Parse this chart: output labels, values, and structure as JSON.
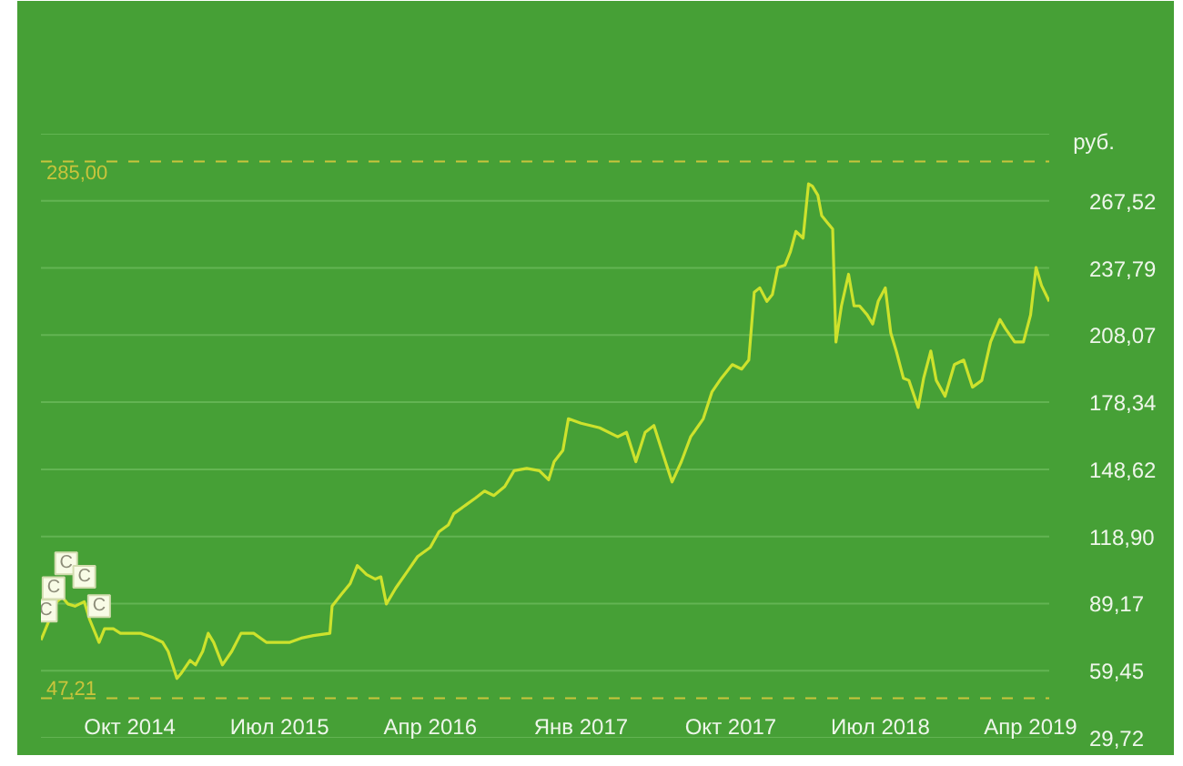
{
  "chart_data": {
    "type": "line",
    "ylabel": "руб.",
    "x": [
      "2014-04-22",
      "2014-05-21",
      "2014-05-31",
      "2014-06-10",
      "2014-06-23",
      "2014-07-10",
      "2014-07-20",
      "2014-08-06",
      "2014-08-16",
      "2014-09-01",
      "2014-09-14",
      "2014-10-01",
      "2014-10-21",
      "2014-11-13",
      "2014-11-30",
      "2014-12-10",
      "2014-12-26",
      "2015-01-02",
      "2015-01-19",
      "2015-01-29",
      "2015-02-11",
      "2015-02-21",
      "2015-03-03",
      "2015-03-19",
      "2015-04-05",
      "2015-04-22",
      "2015-05-15",
      "2015-06-07",
      "2015-06-27",
      "2015-07-20",
      "2015-08-12",
      "2015-09-01",
      "2015-10-01",
      "2015-10-05",
      "2015-10-21",
      "2015-11-07",
      "2015-11-20",
      "2015-12-07",
      "2015-12-23",
      "2016-01-02",
      "2016-01-12",
      "2016-01-29",
      "2016-02-21",
      "2016-03-09",
      "2016-04-01",
      "2016-04-17",
      "2016-05-04",
      "2016-05-14",
      "2016-06-06",
      "2016-06-23",
      "2016-07-09",
      "2016-07-26",
      "2016-08-15",
      "2016-09-01",
      "2016-09-24",
      "2016-10-17",
      "2016-11-03",
      "2016-11-13",
      "2016-11-29",
      "2016-12-09",
      "2017-01-01",
      "2017-02-04",
      "2017-03-09",
      "2017-03-25",
      "2017-04-11",
      "2017-04-28",
      "2017-05-14",
      "2017-05-31",
      "2017-06-16",
      "2017-07-03",
      "2017-07-20",
      "2017-08-12",
      "2017-08-28",
      "2017-09-14",
      "2017-10-04",
      "2017-10-21",
      "2017-11-03",
      "2017-11-13",
      "2017-11-23",
      "2017-12-06",
      "2017-12-16",
      "2017-12-26",
      "2018-01-08",
      "2018-01-18",
      "2018-01-28",
      "2018-02-10",
      "2018-02-20",
      "2018-02-27",
      "2018-03-09",
      "2018-03-16",
      "2018-03-26",
      "2018-04-05",
      "2018-04-11",
      "2018-04-21",
      "2018-05-04",
      "2018-05-14",
      "2018-05-24",
      "2018-06-07",
      "2018-06-17",
      "2018-06-27",
      "2018-07-10",
      "2018-07-20",
      "2018-07-30",
      "2018-08-12",
      "2018-08-22",
      "2018-09-08",
      "2018-09-18",
      "2018-10-01",
      "2018-10-11",
      "2018-10-27",
      "2018-11-13",
      "2018-11-30",
      "2018-12-16",
      "2019-01-02",
      "2019-01-18",
      "2019-02-04",
      "2019-02-14",
      "2019-03-03",
      "2019-03-19",
      "2019-04-01",
      "2019-04-11",
      "2019-04-21",
      "2019-05-05"
    ],
    "series": [
      {
        "color": "#cde22c",
        "values": [
          73,
          90,
          92,
          89,
          88,
          90,
          82,
          72,
          78,
          78,
          76,
          76,
          76,
          74,
          72,
          68,
          56,
          58,
          64,
          62,
          68,
          76,
          72,
          62,
          68,
          76,
          76,
          72,
          72,
          72,
          74,
          75,
          76,
          88,
          93,
          98,
          106,
          102,
          100,
          101,
          89,
          96,
          104,
          110,
          114,
          121,
          124,
          129,
          133,
          136,
          139,
          137,
          141,
          148,
          149,
          148,
          144,
          152,
          157,
          171,
          169,
          167,
          163,
          165,
          152,
          165,
          168,
          155,
          143,
          152,
          163,
          171,
          183,
          189,
          195,
          193,
          197,
          227,
          229,
          223,
          226,
          238,
          239,
          245,
          254,
          251,
          275,
          274,
          270,
          261,
          258,
          255,
          205,
          221,
          235,
          221,
          221,
          217,
          213,
          223,
          229,
          209,
          201,
          189,
          188,
          176,
          189,
          201,
          188,
          181,
          195,
          197,
          185,
          188,
          205,
          215,
          211,
          205,
          205,
          217,
          238,
          230,
          223
        ]
      }
    ],
    "xlim": [
      "2014-04-22",
      "2019-05-05"
    ],
    "xticks": [
      {
        "value": "2014-10-01",
        "label": "Окт 2014"
      },
      {
        "value": "2015-07-01",
        "label": "Июл 2015"
      },
      {
        "value": "2016-04-01",
        "label": "Апр 2016"
      },
      {
        "value": "2017-01-01",
        "label": "Янв 2017"
      },
      {
        "value": "2017-10-01",
        "label": "Окт 2017"
      },
      {
        "value": "2018-07-01",
        "label": "Июл 2018"
      },
      {
        "value": "2019-04-01",
        "label": "Апр 2019"
      }
    ],
    "ylim": [
      29.72,
      297.24
    ],
    "yticks": [
      {
        "value": 29.72,
        "label": "29,72"
      },
      {
        "value": 59.45,
        "label": "59,45"
      },
      {
        "value": 89.17,
        "label": "89,17"
      },
      {
        "value": 118.9,
        "label": "118,90"
      },
      {
        "value": 148.62,
        "label": "148,62"
      },
      {
        "value": 178.34,
        "label": "178,34"
      },
      {
        "value": 208.07,
        "label": "208,07"
      },
      {
        "value": 237.79,
        "label": "237,79"
      },
      {
        "value": 267.52,
        "label": "267,52"
      },
      {
        "value": 297.24,
        "label": null
      }
    ],
    "grid": "y",
    "ref_lines": [
      {
        "axis": "y",
        "value": 285.0,
        "label": "285,00",
        "color": "#c9c43c",
        "line_style": "dashed"
      },
      {
        "axis": "y",
        "value": 47.21,
        "label": "47,21",
        "color": "#c9c43c",
        "line_style": "dashed"
      }
    ],
    "annotations": [
      {
        "text": "С",
        "x": "2014-05-01",
        "y": 86
      },
      {
        "text": "С",
        "x": "2014-05-15",
        "y": 96
      },
      {
        "text": "С",
        "x": "2014-06-07",
        "y": 107
      },
      {
        "text": "С",
        "x": "2014-07-10",
        "y": 101
      },
      {
        "text": "С",
        "x": "2014-08-06",
        "y": 88
      }
    ]
  }
}
